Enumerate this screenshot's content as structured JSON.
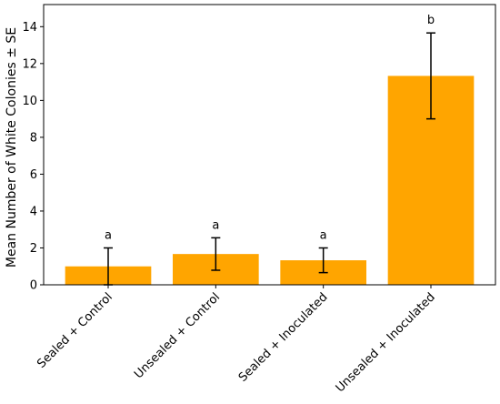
{
  "chart_data": {
    "type": "bar",
    "categories": [
      "Sealed + Control",
      "Unsealed + Control",
      "Sealed + Inoculated",
      "Unsealed + Inoculated"
    ],
    "values": [
      1.0,
      1.67,
      1.33,
      11.33
    ],
    "errors": [
      1.0,
      0.88,
      0.67,
      2.33
    ],
    "significance_letters": [
      "a",
      "a",
      "a",
      "b"
    ],
    "title": "",
    "xlabel": "",
    "ylabel": "Mean Number of White Colonies ± SE",
    "ylim": [
      0,
      15.2
    ],
    "yticks": [
      0,
      2,
      4,
      6,
      8,
      10,
      12,
      14
    ],
    "grid": false,
    "bar_color": "#ffa500",
    "error_color": "#000000"
  }
}
